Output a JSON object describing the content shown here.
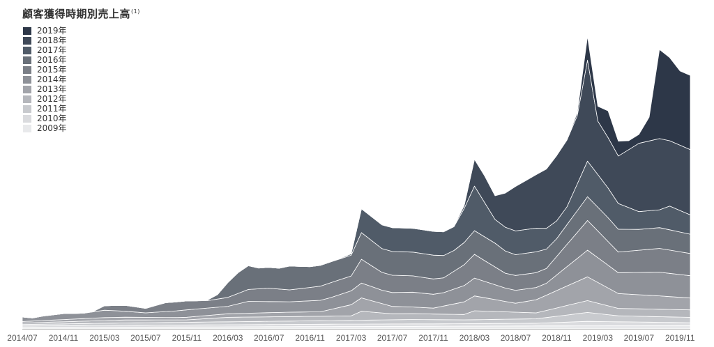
{
  "chart_data": {
    "type": "area",
    "stacked": true,
    "title": "顧客獲得時期別売上高",
    "title_note": "(1)",
    "xlabel": "",
    "ylabel": "",
    "x_ticks": [
      "2014/07",
      "2014/11",
      "2015/03",
      "2015/07",
      "2015/11",
      "2016/03",
      "2016/07",
      "2016/11",
      "2017/03",
      "2017/07",
      "2017/11",
      "2018/03",
      "2018/07",
      "2018/11",
      "2019/03",
      "2019/07",
      "2019/11"
    ],
    "x_range": [
      0,
      65
    ],
    "ylim": [
      0,
      100
    ],
    "grid": false,
    "legend_position": "top-left",
    "legend_order": [
      "2019年",
      "2018年",
      "2017年",
      "2016年",
      "2015年",
      "2014年",
      "2013年",
      "2012年",
      "2011年",
      "2010年",
      "2009年"
    ],
    "series": [
      {
        "name": "2009年",
        "color": "#e8e9eb",
        "values": [
          [
            0,
            0.5
          ],
          [
            10,
            0.6
          ],
          [
            20,
            0.7
          ],
          [
            30,
            0.8
          ],
          [
            40,
            0.9
          ],
          [
            50,
            1.0
          ],
          [
            65,
            1.1
          ]
        ]
      },
      {
        "name": "2010年",
        "color": "#dadbde",
        "values": [
          [
            0,
            0.5
          ],
          [
            10,
            0.6
          ],
          [
            20,
            0.7
          ],
          [
            30,
            0.8
          ],
          [
            40,
            0.8
          ],
          [
            50,
            0.9
          ],
          [
            55,
            1.5
          ],
          [
            65,
            1.0
          ]
        ]
      },
      {
        "name": "2011年",
        "color": "#c8cace",
        "values": [
          [
            0,
            0.5
          ],
          [
            10,
            0.8
          ],
          [
            20,
            1.0
          ],
          [
            30,
            1.2
          ],
          [
            38,
            1.5
          ],
          [
            43,
            1.3
          ],
          [
            50,
            1.5
          ],
          [
            55,
            3.0
          ],
          [
            58,
            2.0
          ],
          [
            65,
            1.8
          ]
        ]
      },
      {
        "name": "2012年",
        "color": "#b5b7bc",
        "values": [
          [
            0,
            0.5
          ],
          [
            10,
            1.0
          ],
          [
            16,
            0.8
          ],
          [
            20,
            1.5
          ],
          [
            26,
            1.5
          ],
          [
            32,
            1.5
          ],
          [
            33,
            3.0
          ],
          [
            36,
            2.0
          ],
          [
            43,
            1.8
          ],
          [
            44,
            3.0
          ],
          [
            50,
            2.0
          ],
          [
            55,
            4.0
          ],
          [
            58,
            2.5
          ],
          [
            65,
            2.5
          ]
        ]
      },
      {
        "name": "2013年",
        "color": "#a2a4aa",
        "values": [
          [
            0,
            0.5
          ],
          [
            8,
            1.0
          ],
          [
            15,
            0.8
          ],
          [
            20,
            1.2
          ],
          [
            26,
            1.5
          ],
          [
            29,
            1.5
          ],
          [
            33,
            4.5
          ],
          [
            36,
            2.5
          ],
          [
            40,
            2.0
          ],
          [
            44,
            5.0
          ],
          [
            48,
            3.0
          ],
          [
            55,
            8.0
          ],
          [
            58,
            5.0
          ],
          [
            62,
            4.5
          ],
          [
            65,
            4.0
          ]
        ]
      },
      {
        "name": "2014年",
        "color": "#8e9198",
        "values": [
          [
            0,
            1.5
          ],
          [
            1,
            1.0
          ],
          [
            2,
            1.5
          ],
          [
            4,
            2.0
          ],
          [
            6,
            1.8
          ],
          [
            8,
            2.5
          ],
          [
            10,
            2.0
          ],
          [
            12,
            1.5
          ],
          [
            14,
            2.0
          ],
          [
            16,
            2.5
          ],
          [
            20,
            2.5
          ],
          [
            22,
            4.0
          ],
          [
            26,
            3.5
          ],
          [
            30,
            4.0
          ],
          [
            33,
            5.0
          ],
          [
            35,
            4.5
          ],
          [
            38,
            5.0
          ],
          [
            41,
            4.5
          ],
          [
            44,
            6.0
          ],
          [
            47,
            4.5
          ],
          [
            51,
            4.0
          ],
          [
            55,
            9.0
          ],
          [
            58,
            7.0
          ],
          [
            62,
            8.0
          ],
          [
            65,
            7.5
          ]
        ]
      },
      {
        "name": "2015年",
        "color": "#7b7f87",
        "values": [
          [
            7,
            0.3
          ],
          [
            8,
            1.5
          ],
          [
            10,
            2.0
          ],
          [
            12,
            1.5
          ],
          [
            14,
            3.0
          ],
          [
            16,
            3.0
          ],
          [
            18,
            2.5
          ],
          [
            20,
            3.0
          ],
          [
            22,
            4.0
          ],
          [
            24,
            4.5
          ],
          [
            26,
            4.0
          ],
          [
            28,
            4.5
          ],
          [
            30,
            5.0
          ],
          [
            32,
            5.0
          ],
          [
            33,
            8.0
          ],
          [
            35,
            6.0
          ],
          [
            38,
            5.5
          ],
          [
            41,
            5.0
          ],
          [
            44,
            8.0
          ],
          [
            47,
            5.0
          ],
          [
            51,
            5.0
          ],
          [
            55,
            10.0
          ],
          [
            58,
            7.0
          ],
          [
            62,
            8.0
          ],
          [
            65,
            7.5
          ]
        ]
      },
      {
        "name": "2016年",
        "color": "#697079",
        "values": [
          [
            18,
            0.2
          ],
          [
            19,
            1.5
          ],
          [
            20,
            5.0
          ],
          [
            21,
            7.0
          ],
          [
            22,
            8.0
          ],
          [
            23,
            7.0
          ],
          [
            25,
            7.0
          ],
          [
            26,
            8.0
          ],
          [
            28,
            7.0
          ],
          [
            30,
            7.0
          ],
          [
            32,
            7.0
          ],
          [
            33,
            9.0
          ],
          [
            35,
            8.0
          ],
          [
            38,
            8.0
          ],
          [
            40,
            8.0
          ],
          [
            42,
            7.0
          ],
          [
            44,
            8.0
          ],
          [
            46,
            8.0
          ],
          [
            48,
            7.0
          ],
          [
            50,
            7.0
          ],
          [
            52,
            6.0
          ],
          [
            55,
            8.0
          ],
          [
            57,
            8.0
          ],
          [
            60,
            7.0
          ],
          [
            62,
            7.0
          ],
          [
            65,
            6.5
          ]
        ]
      },
      {
        "name": "2017年",
        "color": "#505b68",
        "values": [
          [
            31,
            0.2
          ],
          [
            32,
            0.5
          ],
          [
            33,
            8.0
          ],
          [
            35,
            8.0
          ],
          [
            37,
            8.0
          ],
          [
            40,
            8.0
          ],
          [
            42,
            8.0
          ],
          [
            44,
            15.0
          ],
          [
            46,
            8.0
          ],
          [
            48,
            8.0
          ],
          [
            50,
            8.0
          ],
          [
            52,
            6.0
          ],
          [
            53,
            6.0
          ],
          [
            55,
            12.0
          ],
          [
            57,
            10.0
          ],
          [
            60,
            6.0
          ],
          [
            62,
            6.0
          ],
          [
            63,
            8.0
          ],
          [
            65,
            6.5
          ]
        ]
      },
      {
        "name": "2018年",
        "color": "#3f4958",
        "values": [
          [
            42,
            0.2
          ],
          [
            43,
            1.0
          ],
          [
            44,
            9.0
          ],
          [
            45,
            9.0
          ],
          [
            46,
            8.0
          ],
          [
            48,
            15.0
          ],
          [
            50,
            18.0
          ],
          [
            52,
            22.0
          ],
          [
            54,
            23.0
          ],
          [
            55,
            34.0
          ],
          [
            56,
            18.0
          ],
          [
            57,
            17.0
          ],
          [
            58,
            16.0
          ],
          [
            60,
            23.0
          ],
          [
            62,
            24.0
          ],
          [
            63,
            22.0
          ],
          [
            65,
            22.0
          ]
        ]
      },
      {
        "name": "2019年",
        "color": "#2d3748",
        "values": [
          [
            53,
            0.1
          ],
          [
            54,
            1.0
          ],
          [
            55,
            8.0
          ],
          [
            56,
            5.0
          ],
          [
            57,
            9.0
          ],
          [
            58,
            5.0
          ],
          [
            59,
            3.0
          ],
          [
            60,
            3.0
          ],
          [
            61,
            8.0
          ],
          [
            62,
            30.0
          ],
          [
            63,
            28.0
          ],
          [
            64,
            25.0
          ],
          [
            65,
            25.0
          ]
        ]
      }
    ]
  }
}
